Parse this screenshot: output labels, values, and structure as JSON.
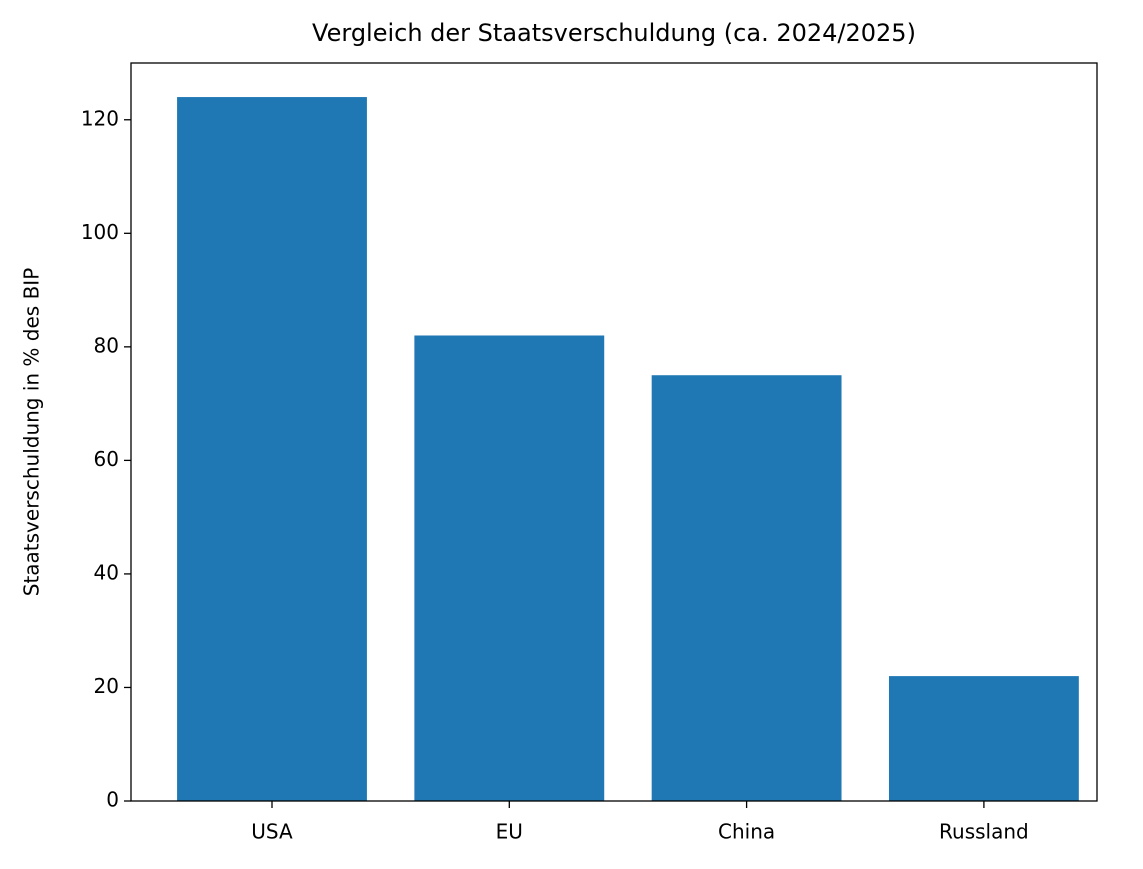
{
  "chart_data": {
    "type": "bar",
    "title": "Vergleich der Staatsverschuldung (ca. 2024/2025)",
    "y_label": "Staatsverschuldung in % des BIP",
    "categories": [
      "USA",
      "EU",
      "China",
      "Russland"
    ],
    "values": [
      124,
      82,
      75,
      22
    ],
    "color": "#1f77b4",
    "ylim": [
      0,
      130
    ],
    "yticks": [
      0,
      20,
      40,
      60,
      80,
      100,
      120
    ],
    "grid": false
  }
}
